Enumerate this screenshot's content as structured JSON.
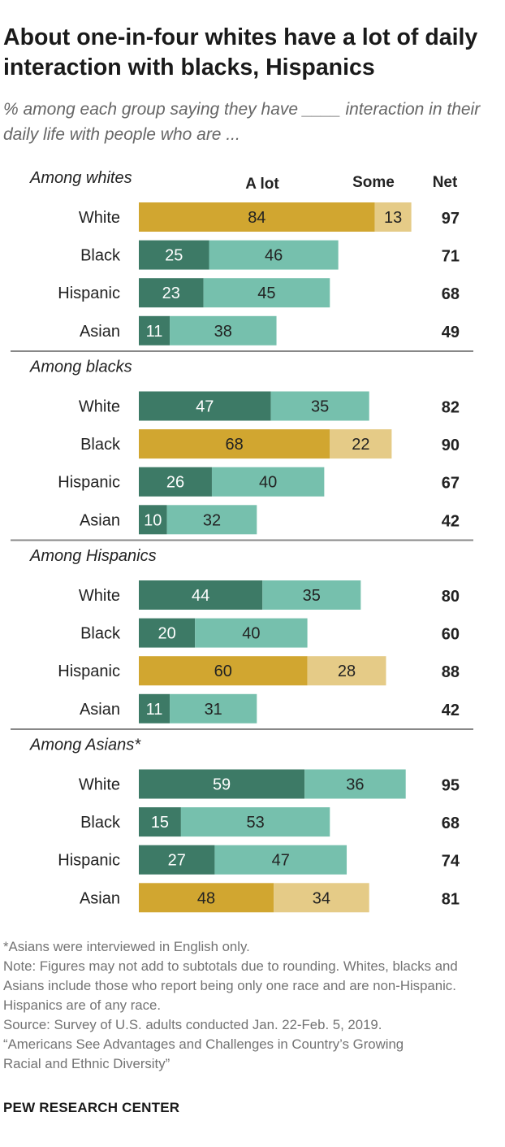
{
  "title": "About one-in-four whites have a lot of daily interaction with blacks, Hispanics",
  "subtitle": "% among each group saying they have ____ interaction in their daily life with people who are ...",
  "colors": {
    "a_lot": "#3d7a66",
    "some": "#76c0ad",
    "a_lot_own": "#d1a630",
    "some_own": "#e5cb87",
    "divider": "#888888"
  },
  "chart_data": {
    "type": "bar",
    "orientation": "horizontal",
    "stacked": true,
    "column_headers": {
      "a_lot": "A lot",
      "some": "Some",
      "net": "Net"
    },
    "groups": [
      {
        "label": "Among whites",
        "rows": [
          {
            "category": "White",
            "a_lot": 84,
            "some": 13,
            "net": 97,
            "own_group": true
          },
          {
            "category": "Black",
            "a_lot": 25,
            "some": 46,
            "net": 71,
            "own_group": false
          },
          {
            "category": "Hispanic",
            "a_lot": 23,
            "some": 45,
            "net": 68,
            "own_group": false
          },
          {
            "category": "Asian",
            "a_lot": 11,
            "some": 38,
            "net": 49,
            "own_group": false
          }
        ]
      },
      {
        "label": "Among blacks",
        "rows": [
          {
            "category": "White",
            "a_lot": 47,
            "some": 35,
            "net": 82,
            "own_group": false
          },
          {
            "category": "Black",
            "a_lot": 68,
            "some": 22,
            "net": 90,
            "own_group": true
          },
          {
            "category": "Hispanic",
            "a_lot": 26,
            "some": 40,
            "net": 67,
            "own_group": false
          },
          {
            "category": "Asian",
            "a_lot": 10,
            "some": 32,
            "net": 42,
            "own_group": false
          }
        ]
      },
      {
        "label": "Among Hispanics",
        "rows": [
          {
            "category": "White",
            "a_lot": 44,
            "some": 35,
            "net": 80,
            "own_group": false
          },
          {
            "category": "Black",
            "a_lot": 20,
            "some": 40,
            "net": 60,
            "own_group": false
          },
          {
            "category": "Hispanic",
            "a_lot": 60,
            "some": 28,
            "net": 88,
            "own_group": true
          },
          {
            "category": "Asian",
            "a_lot": 11,
            "some": 31,
            "net": 42,
            "own_group": false
          }
        ]
      },
      {
        "label": "Among Asians*",
        "rows": [
          {
            "category": "White",
            "a_lot": 59,
            "some": 36,
            "net": 95,
            "own_group": false
          },
          {
            "category": "Black",
            "a_lot": 15,
            "some": 53,
            "net": 68,
            "own_group": false
          },
          {
            "category": "Hispanic",
            "a_lot": 27,
            "some": 47,
            "net": 74,
            "own_group": false
          },
          {
            "category": "Asian",
            "a_lot": 48,
            "some": 34,
            "net": 81,
            "own_group": true
          }
        ]
      }
    ]
  },
  "footer": {
    "asterisk_note": "*Asians were interviewed in English only.",
    "note": "Note: Figures may not add to subtotals due to rounding. Whites, blacks and Asians include those who report being only one race and are non-Hispanic. Hispanics are of any race.",
    "source": "Source: Survey of U.S. adults conducted Jan. 22-Feb. 5, 2019.",
    "report": "“Americans See Advantages and Challenges in Country’s Growing\nRacial and Ethnic Diversity”",
    "org": "PEW RESEARCH CENTER"
  }
}
